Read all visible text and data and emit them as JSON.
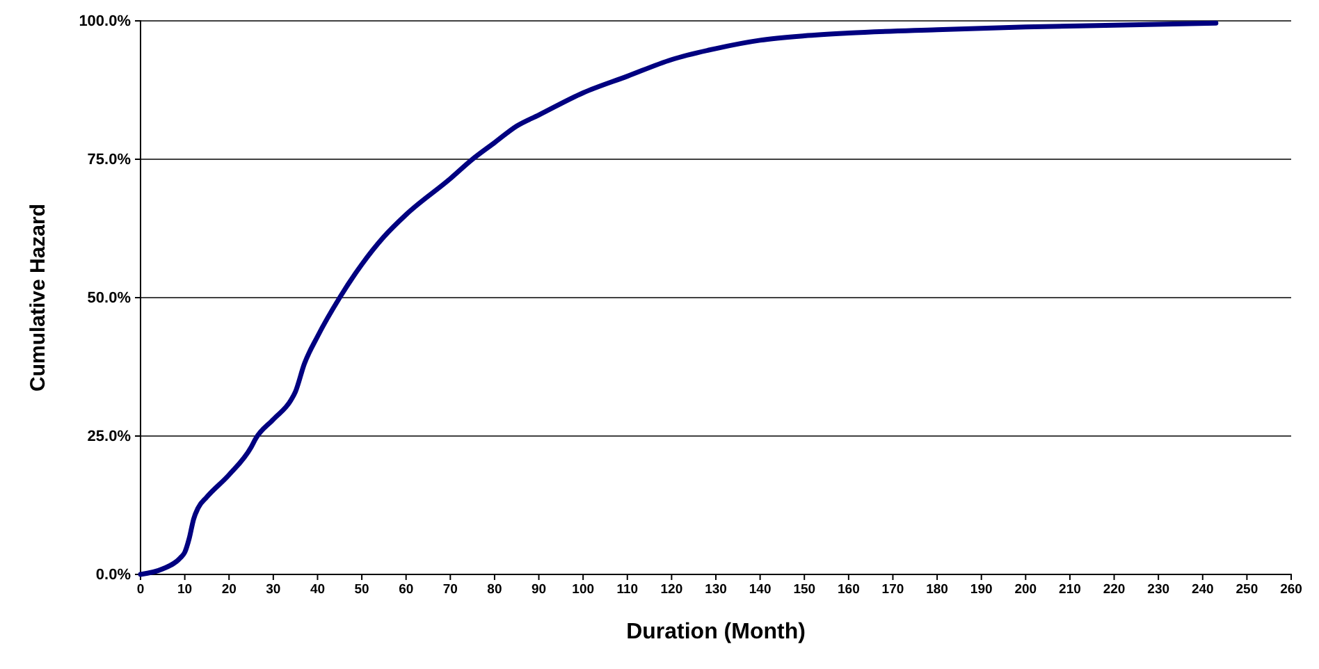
{
  "chart_data": {
    "type": "line",
    "xlabel": "Duration (Month)",
    "ylabel": "Cumulative Hazard",
    "series": [
      {
        "color": "#000080",
        "x": [
          0,
          5,
          9,
          10,
          11,
          12,
          13,
          15,
          20,
          25,
          26,
          30,
          34,
          35,
          37,
          40,
          45,
          50,
          55,
          60,
          70,
          75,
          80,
          85,
          90,
          100,
          110,
          120,
          130,
          140,
          150,
          160,
          180,
          200,
          220,
          243
        ],
        "values": [
          0,
          1,
          3,
          4,
          6.5,
          10,
          12,
          14,
          18,
          23,
          24.5,
          28,
          31.5,
          33,
          38,
          43,
          50,
          56,
          61,
          65,
          71.5,
          75,
          78,
          81,
          83,
          87,
          90,
          93,
          95,
          96.5,
          97.3,
          97.8,
          98.4,
          98.9,
          99.2,
          99.6
        ]
      }
    ],
    "xlim": [
      0,
      260
    ],
    "xticks": [
      0,
      10,
      20,
      30,
      40,
      50,
      60,
      70,
      80,
      90,
      100,
      110,
      120,
      130,
      140,
      150,
      160,
      170,
      180,
      190,
      200,
      210,
      220,
      230,
      240,
      250,
      260
    ],
    "ylim": [
      0,
      100
    ],
    "yticks": [
      {
        "value": 0,
        "label": "0.0%"
      },
      {
        "value": 25,
        "label": "25.0%"
      },
      {
        "value": 50,
        "label": "50.0%"
      },
      {
        "value": 75,
        "label": "75.0%"
      },
      {
        "value": 100,
        "label": "100.0%"
      }
    ],
    "grid": "y",
    "marker": "none",
    "line_style": "solid"
  }
}
